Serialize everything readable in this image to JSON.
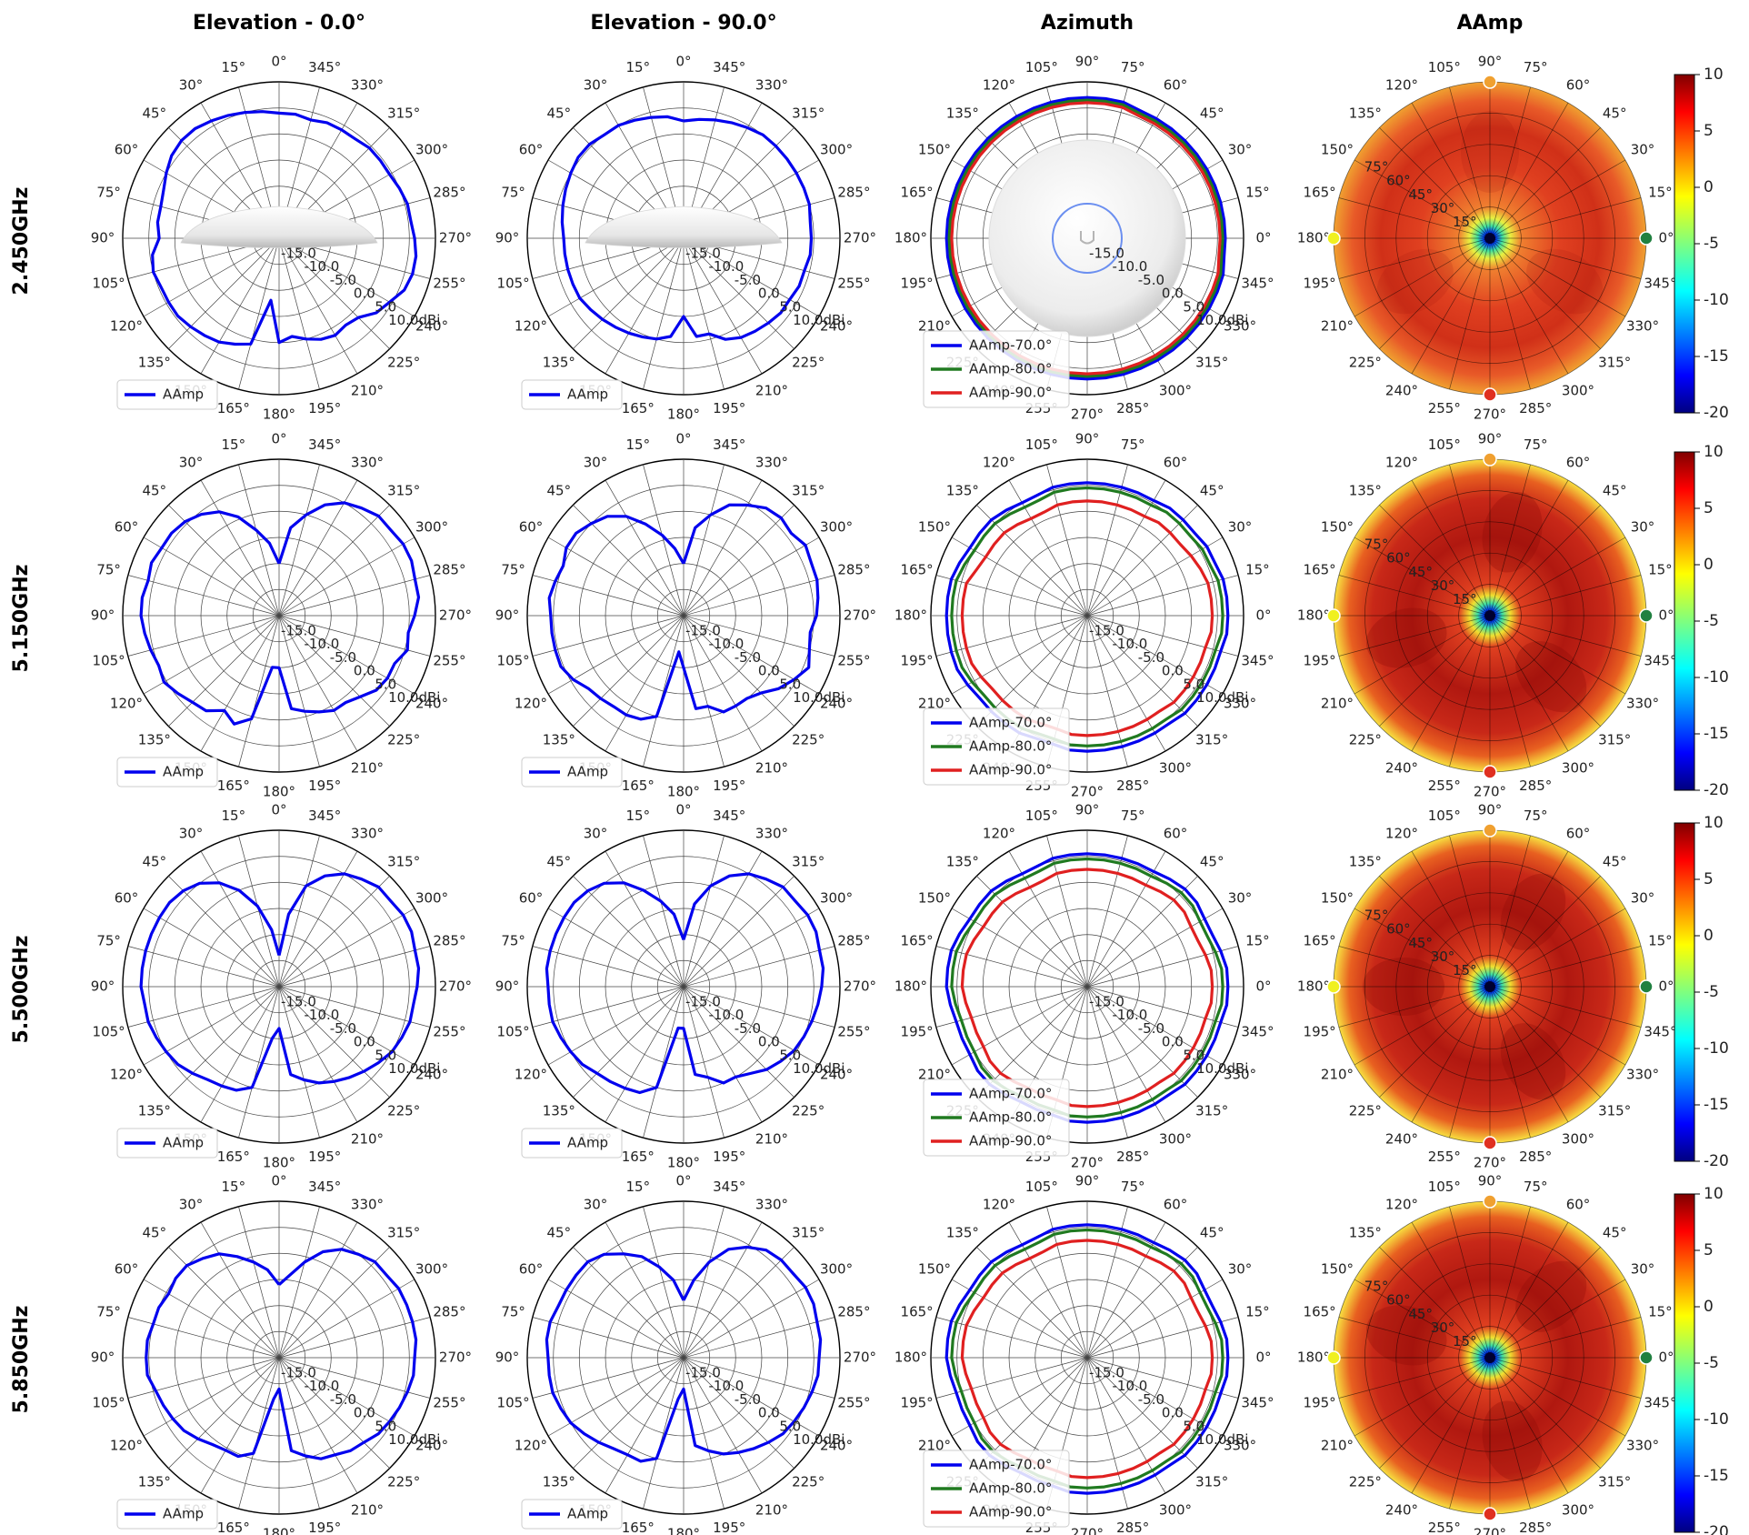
{
  "chart_data": {
    "type": "polar",
    "column_titles": [
      "Elevation - 0.0°",
      "Elevation - 90.0°",
      "Azimuth",
      "AAmp"
    ],
    "row_labels": [
      "2.450GHz",
      "5.150GHz",
      "5.500GHz",
      "5.850GHz"
    ],
    "angle_ticks_elevation": [
      "0°",
      "15°",
      "30°",
      "45°",
      "60°",
      "75°",
      "90°",
      "105°",
      "120°",
      "135°",
      "150°",
      "165°",
      "180°",
      "195°",
      "210°",
      "225°",
      "240°",
      "255°",
      "270°",
      "285°",
      "300°",
      "315°",
      "330°",
      "345°"
    ],
    "angle_ticks_azimuth": [
      "90°",
      "75°",
      "60°",
      "45°",
      "30°",
      "15°",
      "0°",
      "345°",
      "330°",
      "315°",
      "300°",
      "285°",
      "270°",
      "255°",
      "240°",
      "225°",
      "210°",
      "195°",
      "180°",
      "165°",
      "150°",
      "135°",
      "120°",
      "105°"
    ],
    "radial_ticks": [
      "-15.0",
      "-10.0",
      "-5.0",
      "0.0",
      "5.0",
      "10.0dBi"
    ],
    "radial_range": [
      -20,
      10
    ],
    "heatmap_radial_ticks": [
      "15°",
      "30°",
      "45°",
      "60°",
      "75°"
    ],
    "colorbar": {
      "ticks": [
        "10",
        "5",
        "0",
        "-5",
        "-10",
        "-15",
        "-20"
      ],
      "range": [
        -20,
        10
      ],
      "colormap": "jet"
    },
    "legend_elevation": [
      "AAmp"
    ],
    "legend_azimuth": [
      "AAmp-70.0°",
      "AAmp-80.0°",
      "AAmp-90.0°"
    ],
    "series_colors": {
      "AAmp": "#0000ee",
      "AAmp-70.0°": "#0000ee",
      "AAmp-80.0°": "#207a20",
      "AAmp-90.0°": "#e02020"
    },
    "rows": [
      {
        "freq": "2.450GHz",
        "elev0": [
          4.0,
          4.5,
          5.0,
          5.5,
          6.0,
          6.5,
          6.5,
          6.0,
          5.0,
          4.0,
          3.5,
          3.5,
          3.0,
          4.5,
          5.0,
          4.5,
          4.5,
          4.5,
          4.0,
          3.5,
          3.0,
          2.0,
          1.0,
          -8.0,
          0.0,
          -1.0,
          0.0,
          1.0,
          1.5,
          1.0,
          1.5,
          3.5,
          4.5,
          6.0,
          6.5,
          6.5,
          6.0,
          5.5,
          5.5,
          5.0,
          4.5,
          4.5,
          4.5,
          4.0,
          4.0,
          4.0,
          3.5,
          4.0
        ],
        "elev90": [
          2.5,
          3.5,
          4.0,
          4.5,
          5.0,
          5.0,
          5.5,
          5.5,
          5.0,
          4.5,
          4.0,
          3.5,
          3.0,
          3.0,
          3.0,
          3.0,
          3.0,
          2.5,
          2.0,
          1.5,
          1.0,
          0.5,
          0.0,
          -1.0,
          -5.0,
          -1.0,
          -1.0,
          1.0,
          2.0,
          2.5,
          3.0,
          3.5,
          3.5,
          4.0,
          4.0,
          4.5,
          4.5,
          4.5,
          5.0,
          5.0,
          5.0,
          5.0,
          5.0,
          5.0,
          4.5,
          4.0,
          3.5,
          3.0
        ],
        "az70": [
          6.5,
          6.5,
          6.5,
          6.5,
          6.5,
          6.5,
          6.5,
          6.5,
          6.5,
          6.5,
          7.0,
          7.0,
          7.0,
          7.0,
          7.0,
          7.0,
          7.0,
          7.0,
          7.0,
          7.0,
          7.0,
          7.0,
          7.0,
          7.0,
          7.0,
          7.0,
          7.0,
          7.0,
          7.0,
          7.0,
          7.0,
          7.0,
          7.0,
          7.0,
          7.0,
          7.0,
          7.0,
          7.0,
          7.0,
          7.0,
          7.0,
          7.0,
          7.0,
          7.0,
          7.0,
          7.0,
          7.0,
          6.5
        ],
        "az80": [
          6.0,
          6.0,
          6.0,
          6.0,
          6.0,
          6.0,
          6.0,
          6.0,
          6.0,
          6.0,
          6.5,
          6.5,
          6.5,
          6.5,
          6.5,
          6.5,
          6.5,
          6.5,
          6.5,
          6.5,
          6.5,
          6.5,
          6.5,
          6.5,
          6.5,
          6.5,
          6.5,
          6.5,
          6.5,
          6.5,
          6.5,
          6.5,
          6.5,
          6.5,
          6.5,
          6.5,
          6.5,
          6.5,
          6.5,
          6.5,
          6.5,
          6.5,
          6.5,
          6.5,
          6.5,
          6.5,
          6.5,
          6.0
        ],
        "az90": [
          5.5,
          5.5,
          5.5,
          5.5,
          5.5,
          5.5,
          5.5,
          5.5,
          5.5,
          5.5,
          6.0,
          6.0,
          6.0,
          6.0,
          6.0,
          6.0,
          6.0,
          6.0,
          6.0,
          6.0,
          6.0,
          6.0,
          6.0,
          6.0,
          6.0,
          6.0,
          6.0,
          6.0,
          6.0,
          6.0,
          6.0,
          6.0,
          6.0,
          6.0,
          6.0,
          6.0,
          6.0,
          6.0,
          6.0,
          6.0,
          6.0,
          6.0,
          6.0,
          6.0,
          6.0,
          6.0,
          6.0,
          5.5
        ]
      },
      {
        "freq": "5.150GHz",
        "elev0": [
          -10.0,
          -6.0,
          -3.0,
          0.5,
          3.0,
          4.5,
          5.5,
          6.0,
          6.0,
          6.5,
          6.0,
          6.5,
          6.5,
          6.0,
          5.5,
          5.0,
          5.5,
          4.5,
          3.5,
          3.0,
          1.0,
          2.5,
          0.5,
          -10.0,
          -10.0,
          -2.0,
          -1.0,
          0.0,
          1.0,
          1.0,
          2.0,
          3.5,
          4.0,
          4.0,
          5.5,
          5.0,
          6.0,
          7.0,
          7.0,
          7.5,
          7.5,
          7.0,
          7.0,
          6.0,
          5.0,
          3.0,
          0.0,
          -3.0
        ],
        "elev90": [
          -10.0,
          -7.0,
          -4.0,
          -1.0,
          2.0,
          4.0,
          5.0,
          6.0,
          6.0,
          5.0,
          5.5,
          6.0,
          5.5,
          5.5,
          5.5,
          5.5,
          4.5,
          3.0,
          2.5,
          2.0,
          2.0,
          1.5,
          0.0,
          -13.0,
          -10.0,
          -2.0,
          -2.0,
          0.0,
          0.0,
          0.0,
          1.0,
          3.0,
          4.5,
          6.0,
          5.0,
          4.5,
          5.5,
          6.0,
          6.5,
          6.5,
          7.0,
          6.0,
          6.5,
          6.0,
          4.5,
          3.0,
          0.0,
          -3.0
        ],
        "az70": [
          7.0,
          7.0,
          7.0,
          6.5,
          6.5,
          6.0,
          6.0,
          6.0,
          5.5,
          5.5,
          5.5,
          5.5,
          5.5,
          5.5,
          5.5,
          5.0,
          5.0,
          5.5,
          6.0,
          6.0,
          6.0,
          6.5,
          7.0,
          7.0,
          7.0,
          7.0,
          7.0,
          7.0,
          6.5,
          6.0,
          6.0,
          6.0,
          6.0,
          5.5,
          5.5,
          6.0,
          6.0,
          6.0,
          6.0,
          6.0,
          6.0,
          6.0,
          6.5,
          6.5,
          6.5,
          6.5,
          6.5,
          7.0
        ],
        "az80": [
          6.0,
          6.0,
          6.0,
          5.5,
          5.5,
          5.0,
          5.0,
          5.0,
          4.5,
          4.5,
          4.5,
          4.5,
          4.5,
          4.5,
          4.5,
          4.0,
          4.0,
          4.5,
          5.0,
          5.0,
          5.0,
          5.5,
          6.0,
          6.0,
          6.0,
          6.0,
          6.0,
          6.0,
          5.5,
          5.0,
          5.0,
          5.0,
          5.0,
          4.5,
          4.5,
          5.0,
          5.0,
          5.0,
          5.0,
          5.0,
          5.0,
          5.0,
          5.5,
          5.5,
          5.5,
          5.5,
          5.5,
          6.0
        ],
        "az90": [
          4.0,
          4.0,
          4.0,
          3.5,
          3.0,
          2.5,
          2.5,
          2.5,
          2.0,
          2.0,
          2.0,
          2.0,
          2.0,
          2.0,
          2.0,
          1.5,
          1.5,
          2.0,
          2.5,
          2.5,
          2.5,
          3.0,
          4.0,
          4.0,
          4.0,
          4.0,
          4.0,
          4.0,
          3.5,
          3.0,
          3.0,
          3.0,
          3.0,
          2.5,
          2.5,
          3.0,
          3.0,
          3.0,
          3.0,
          3.0,
          3.0,
          3.0,
          3.5,
          3.5,
          3.5,
          3.5,
          3.5,
          4.0
        ]
      },
      {
        "freq": "5.500GHz",
        "elev0": [
          -14.0,
          -9.0,
          -4.0,
          0.0,
          3.0,
          5.0,
          6.0,
          6.5,
          6.5,
          6.5,
          6.5,
          6.5,
          6.5,
          6.0,
          6.0,
          5.5,
          5.0,
          4.5,
          3.5,
          2.5,
          2.0,
          1.5,
          0.0,
          -10.0,
          -12.0,
          -3.0,
          -1.5,
          0.0,
          1.0,
          2.0,
          3.0,
          4.0,
          5.0,
          5.5,
          6.0,
          6.0,
          6.5,
          7.0,
          7.0,
          7.5,
          7.5,
          7.0,
          7.0,
          6.0,
          5.0,
          3.0,
          0.0,
          -6.0
        ],
        "elev90": [
          -11.0,
          -6.0,
          -3.0,
          0.0,
          3.0,
          5.0,
          6.0,
          6.5,
          6.5,
          6.5,
          6.5,
          6.5,
          6.0,
          6.0,
          6.0,
          5.5,
          5.0,
          4.5,
          3.5,
          3.0,
          2.5,
          2.0,
          0.0,
          -12.0,
          -12.0,
          -3.0,
          -2.0,
          0.0,
          0.0,
          1.0,
          2.5,
          3.5,
          4.5,
          5.0,
          5.5,
          6.0,
          6.5,
          7.0,
          7.0,
          7.5,
          7.5,
          7.0,
          7.0,
          6.0,
          5.0,
          3.0,
          0.0,
          -4.0
        ],
        "az70": [
          7.0,
          7.0,
          6.5,
          6.0,
          6.0,
          6.5,
          6.5,
          6.0,
          5.5,
          5.5,
          5.5,
          5.5,
          5.5,
          5.5,
          5.5,
          5.0,
          5.0,
          5.5,
          6.0,
          6.0,
          6.0,
          6.5,
          7.0,
          7.0,
          7.0,
          6.5,
          6.0,
          6.0,
          6.0,
          6.5,
          6.5,
          6.0,
          5.5,
          5.5,
          5.5,
          6.0,
          6.0,
          6.0,
          6.0,
          6.0,
          6.0,
          6.0,
          6.5,
          6.5,
          6.5,
          6.5,
          6.5,
          7.0
        ],
        "az80": [
          6.0,
          6.0,
          5.5,
          5.0,
          5.0,
          5.5,
          5.5,
          5.0,
          4.5,
          4.5,
          4.5,
          4.5,
          4.5,
          4.5,
          4.5,
          4.0,
          4.0,
          4.5,
          5.0,
          5.0,
          5.0,
          5.5,
          6.0,
          6.0,
          6.0,
          5.5,
          5.0,
          5.0,
          5.0,
          5.5,
          5.5,
          5.0,
          4.5,
          4.5,
          4.5,
          5.0,
          5.0,
          5.0,
          5.0,
          5.0,
          5.0,
          5.0,
          5.5,
          5.5,
          5.5,
          5.5,
          5.5,
          6.0
        ],
        "az90": [
          4.0,
          4.0,
          3.5,
          3.0,
          3.0,
          3.5,
          3.5,
          3.0,
          2.5,
          2.5,
          2.5,
          2.5,
          2.5,
          2.5,
          2.5,
          2.0,
          2.0,
          2.5,
          3.0,
          3.0,
          3.0,
          3.5,
          4.0,
          4.0,
          4.0,
          3.5,
          3.0,
          3.0,
          3.0,
          3.5,
          3.5,
          3.0,
          2.5,
          2.5,
          2.5,
          3.0,
          3.0,
          3.0,
          3.0,
          3.0,
          3.0,
          3.0,
          3.5,
          3.5,
          3.5,
          3.5,
          3.5,
          4.0
        ]
      },
      {
        "freq": "5.850GHz",
        "elev0": [
          -6.0,
          -3.0,
          -1.0,
          1.0,
          3.0,
          4.0,
          5.0,
          5.0,
          4.5,
          5.0,
          5.0,
          5.5,
          5.5,
          5.5,
          4.5,
          4.0,
          3.5,
          3.0,
          2.0,
          1.0,
          0.5,
          0.5,
          -1.0,
          -12.0,
          -14.0,
          -2.0,
          -0.5,
          1.0,
          1.5,
          2.5,
          3.0,
          4.0,
          4.5,
          5.0,
          5.5,
          6.0,
          6.0,
          6.5,
          6.5,
          6.5,
          6.5,
          6.0,
          6.0,
          5.0,
          4.0,
          2.0,
          -1.0,
          -4.0
        ],
        "elev90": [
          -9.0,
          -5.0,
          -2.0,
          1.0,
          3.0,
          5.0,
          6.0,
          6.0,
          6.0,
          6.0,
          6.5,
          6.5,
          6.0,
          6.0,
          6.0,
          5.5,
          5.0,
          4.0,
          3.0,
          2.0,
          1.5,
          1.5,
          0.0,
          -12.0,
          -14.0,
          -3.0,
          -1.5,
          0.0,
          1.0,
          2.0,
          3.0,
          4.0,
          4.5,
          5.0,
          5.5,
          6.0,
          6.0,
          6.5,
          6.5,
          7.0,
          7.0,
          6.5,
          6.5,
          6.0,
          4.5,
          2.5,
          -1.0,
          -5.0
        ],
        "az70": [
          7.0,
          7.0,
          6.5,
          6.0,
          6.0,
          6.5,
          6.5,
          6.0,
          5.5,
          5.5,
          5.5,
          5.5,
          5.5,
          5.5,
          5.5,
          5.0,
          5.0,
          5.5,
          6.0,
          6.0,
          6.0,
          6.5,
          7.0,
          7.0,
          7.0,
          6.5,
          6.0,
          6.0,
          6.0,
          6.5,
          6.5,
          6.0,
          5.5,
          5.5,
          5.5,
          6.0,
          6.0,
          6.0,
          6.0,
          6.0,
          6.0,
          6.0,
          6.5,
          6.5,
          6.5,
          6.5,
          6.5,
          7.0
        ],
        "az80": [
          6.0,
          6.0,
          5.5,
          5.0,
          5.0,
          5.5,
          5.5,
          5.0,
          4.5,
          4.5,
          4.5,
          4.5,
          4.5,
          4.5,
          4.5,
          4.0,
          4.0,
          4.5,
          5.0,
          5.0,
          5.0,
          5.5,
          6.0,
          6.0,
          6.0,
          5.5,
          5.0,
          5.0,
          5.0,
          5.5,
          5.5,
          5.0,
          4.5,
          4.5,
          4.5,
          5.0,
          5.0,
          5.0,
          5.0,
          5.0,
          5.0,
          5.0,
          5.5,
          5.5,
          5.5,
          5.5,
          5.5,
          6.0
        ],
        "az90": [
          4.0,
          4.0,
          3.5,
          3.0,
          3.0,
          3.5,
          3.5,
          3.0,
          2.5,
          2.5,
          2.5,
          2.5,
          2.5,
          2.5,
          2.5,
          2.0,
          2.0,
          2.5,
          3.0,
          3.0,
          3.0,
          3.5,
          4.0,
          4.0,
          4.0,
          3.5,
          3.0,
          3.0,
          3.0,
          3.5,
          3.5,
          3.0,
          2.5,
          2.5,
          2.5,
          3.0,
          3.0,
          3.0,
          3.0,
          3.0,
          3.0,
          3.0,
          3.5,
          3.5,
          3.5,
          3.5,
          3.5,
          4.0
        ]
      }
    ]
  }
}
